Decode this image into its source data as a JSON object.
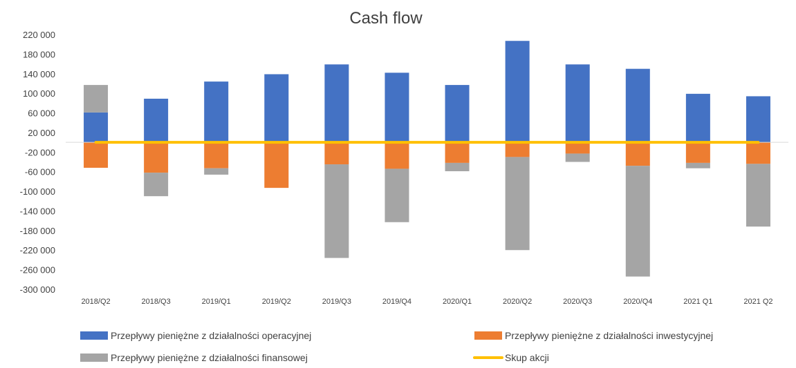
{
  "chart_data": {
    "type": "bar",
    "stacked": true,
    "title": "Cash flow",
    "xlabel": "",
    "ylabel": "",
    "ylim": [
      -300000,
      220000
    ],
    "y_ticks": [
      "220 000",
      "180 000",
      "140 000",
      "100 000",
      "60 000",
      "20 000",
      "-20 000",
      "-60 000",
      "-100 000",
      "-140 000",
      "-180 000",
      "-220 000",
      "-260 000",
      "-300 000"
    ],
    "y_tick_values": [
      220000,
      180000,
      140000,
      100000,
      60000,
      20000,
      -20000,
      -60000,
      -100000,
      -140000,
      -180000,
      -220000,
      -260000,
      -300000
    ],
    "categories": [
      "2018/Q2",
      "2018/Q3",
      "2019/Q1",
      "2019/Q2",
      "2019/Q3",
      "2019/Q4",
      "2020/Q1",
      "2020/Q2",
      "2020/Q3",
      "2020/Q4",
      "2021 Q1",
      "2021 Q2"
    ],
    "series": [
      {
        "name": "Przepływy pieniężne z działalności operacyjnej",
        "color": "#4472C4",
        "kind": "bar",
        "values": [
          61000,
          89000,
          124000,
          139000,
          159000,
          142000,
          117000,
          207000,
          159000,
          150000,
          99000,
          94000
        ]
      },
      {
        "name": "Przepływy pieniężne z działalności inwestycyjnej",
        "color": "#ED7D31",
        "kind": "bar",
        "values": [
          -52000,
          -62000,
          -53000,
          -93000,
          -45000,
          -54000,
          -42000,
          -30000,
          -23000,
          -48000,
          -42000,
          -44000
        ]
      },
      {
        "name": "Przepływy pieniężne z działalności finansowej",
        "color": "#A5A5A5",
        "kind": "bar",
        "values": [
          56000,
          -48000,
          -13000,
          0,
          -191000,
          -109000,
          -17000,
          -190000,
          -17000,
          -226000,
          -11000,
          -128000
        ]
      },
      {
        "name": "Skup akcji",
        "color": "#FFC000",
        "kind": "line",
        "values": [
          0,
          0,
          0,
          0,
          0,
          0,
          0,
          0,
          0,
          0,
          0,
          0
        ]
      }
    ],
    "legend_position": "bottom",
    "grid": false
  }
}
